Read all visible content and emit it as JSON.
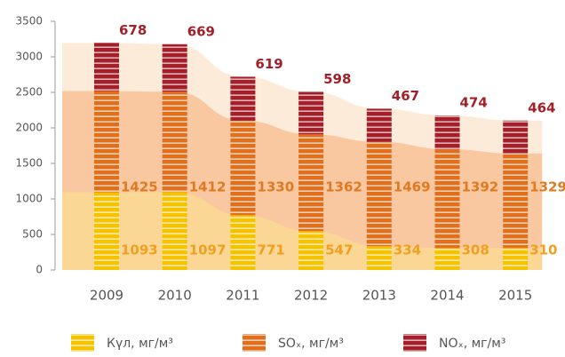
{
  "chart_data": {
    "type": "stacked_bar",
    "categories": [
      "2009",
      "2010",
      "2011",
      "2012",
      "2013",
      "2014",
      "2015"
    ],
    "series": [
      {
        "name": "Күл, мг/м³",
        "color": "#f5c200",
        "label_color": "#f0a020",
        "values": [
          1093,
          1097,
          771,
          547,
          334,
          308,
          310
        ]
      },
      {
        "name": "SOₓ, мг/м³",
        "color": "#e0701e",
        "label_color": "#e07a20",
        "values": [
          1425,
          1412,
          1330,
          1362,
          1469,
          1392,
          1329
        ]
      },
      {
        "name": "NOₓ, мг/м³",
        "color": "#a3202a",
        "label_color": "#a3202a",
        "values": [
          678,
          669,
          619,
          598,
          467,
          474,
          464
        ]
      }
    ],
    "ylim": [
      0,
      3500
    ],
    "yticks": [
      0,
      500,
      1000,
      1500,
      2000,
      2500,
      3000,
      3500
    ]
  }
}
